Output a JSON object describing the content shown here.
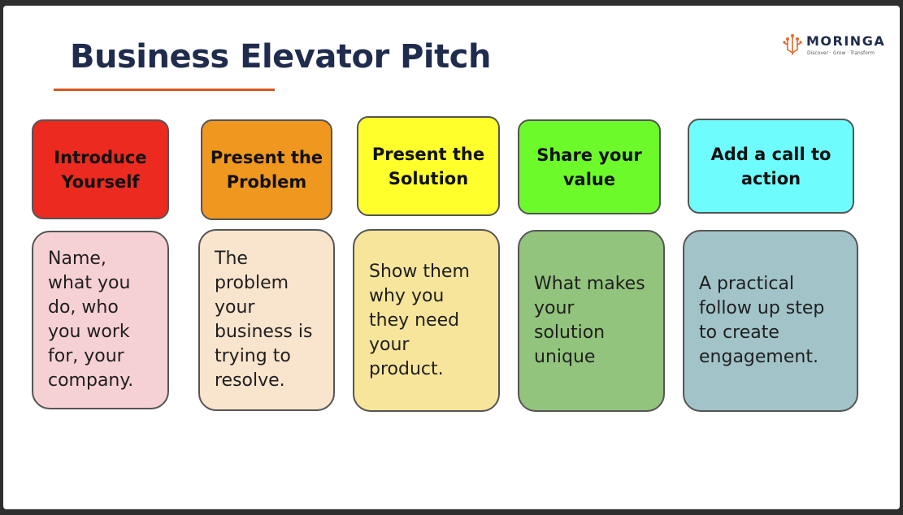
{
  "slide": {
    "title": "Business Elevator Pitch"
  },
  "logo": {
    "name": "MORINGA",
    "tagline": "Discover · Grow · Transform"
  },
  "steps": [
    {
      "header": "Introduce Yourself",
      "body": "Name, what you do, who you work for, your company.",
      "header_color": "#ec2a1f",
      "body_color": "#f6d1d4"
    },
    {
      "header": "Present the Problem",
      "body": "The problem your business is trying to resolve.",
      "header_color": "#ef971e",
      "body_color": "#f9e4cd"
    },
    {
      "header": "Present the Solution",
      "body": "Show them why you they need your product.",
      "header_color": "#ffff2b",
      "body_color": "#f7e59b"
    },
    {
      "header": "Share your value",
      "body": "What makes your solution unique",
      "header_color": "#6dfa2a",
      "body_color": "#93c47d"
    },
    {
      "header": "Add a call to action",
      "body": "A practical follow up step to create engagement.",
      "header_color": "#6ffcfd",
      "body_color": "#a2c4c9"
    }
  ]
}
